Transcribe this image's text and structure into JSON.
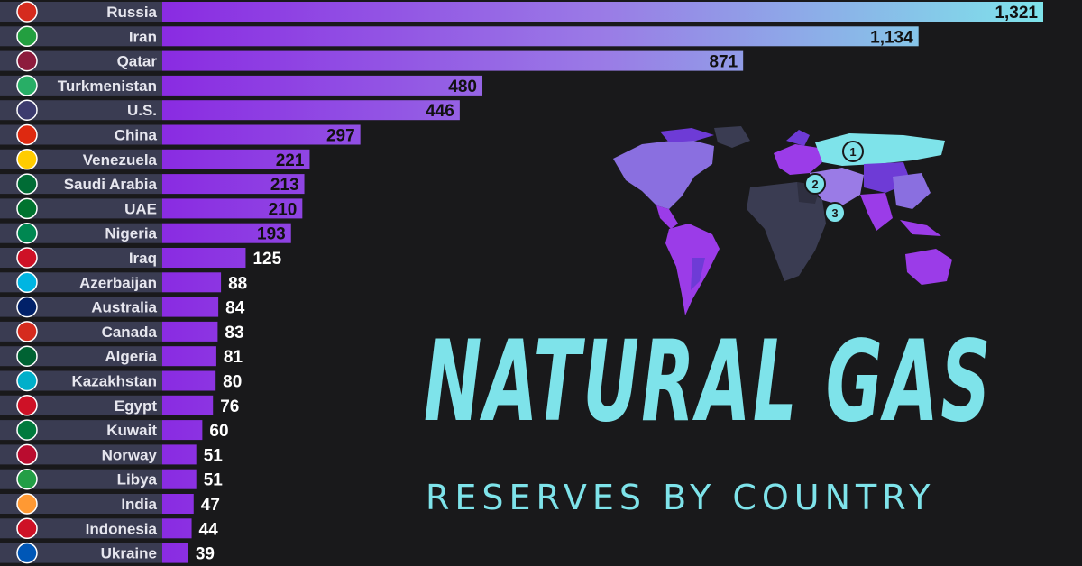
{
  "title": "NATURAL GAS",
  "subtitle": "RESERVES BY COUNTRY",
  "map_markers": [
    "1",
    "2",
    "3"
  ],
  "colors": {
    "background": "#19191b",
    "bar_start": "#8a2be2",
    "bar_end": "#7ee3ea",
    "label_bg": "#3a3c52",
    "accent": "#7ee3ea"
  },
  "chart_data": {
    "type": "bar",
    "orientation": "horizontal",
    "title": "",
    "xlabel": "",
    "ylabel": "",
    "grid": false,
    "categories": [
      "Russia",
      "Iran",
      "Qatar",
      "Turkmenistan",
      "U.S.",
      "China",
      "Venezuela",
      "Saudi Arabia",
      "UAE",
      "Nigeria",
      "Iraq",
      "Azerbaijan",
      "Australia",
      "Canada",
      "Algeria",
      "Kazakhstan",
      "Egypt",
      "Kuwait",
      "Norway",
      "Libya",
      "India",
      "Indonesia",
      "Ukraine"
    ],
    "values": [
      1321,
      1134,
      871,
      480,
      446,
      297,
      221,
      213,
      210,
      193,
      125,
      88,
      84,
      83,
      81,
      80,
      76,
      60,
      51,
      51,
      47,
      44,
      39
    ],
    "value_labels": [
      "1,321",
      "1,134",
      "871",
      "480",
      "446",
      "297",
      "221",
      "213",
      "210",
      "193",
      "125",
      "88",
      "84",
      "83",
      "81",
      "80",
      "76",
      "60",
      "51",
      "51",
      "47",
      "44",
      "39"
    ],
    "xlim": [
      0,
      1321
    ]
  }
}
